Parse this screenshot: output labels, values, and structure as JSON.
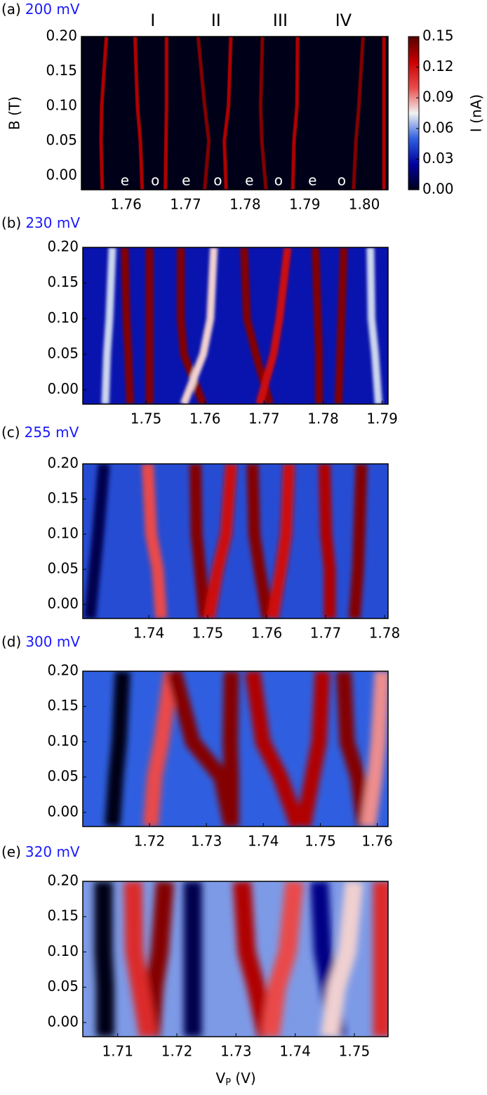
{
  "chart_data": [
    {
      "type": "heatmap",
      "label": "(a)",
      "subtitle": "200 mV",
      "ylabel": "B (T)",
      "xlim": [
        1.7525,
        1.804
      ],
      "xticks": [
        1.76,
        1.77,
        1.78,
        1.79,
        {
          "value": 1.8,
          "label": "1.80"
        }
      ],
      "ylim": [
        -0.02,
        0.2
      ],
      "yticks": [
        {
          "value": 0,
          "label": "0.00"
        },
        0.05,
        {
          "value": 0.1,
          "label": "0.10"
        },
        0.15,
        {
          "value": 0.2,
          "label": "0.20"
        }
      ],
      "background": 0.0,
      "y": [
        -0.02,
        0.05,
        0.1,
        0.2
      ],
      "series": [
        {
          "level": 0.13,
          "values": [
            1.756,
            1.7558,
            1.7559,
            1.7567
          ]
        },
        {
          "level": 0.13,
          "values": [
            1.7627,
            1.7624,
            1.7619,
            1.7615
          ]
        },
        {
          "level": 0.13,
          "values": [
            1.7666,
            1.7667,
            1.7668,
            1.7668
          ]
        },
        {
          "level": 0.14,
          "values": [
            1.7732,
            1.7739,
            1.7732,
            1.7721
          ]
        },
        {
          "level": 0.13,
          "values": [
            1.7768,
            1.7765,
            1.7772,
            1.7776
          ]
        },
        {
          "level": 0.14,
          "values": [
            1.7835,
            1.7828,
            1.7826,
            1.7829
          ]
        },
        {
          "level": 0.13,
          "values": [
            1.788,
            1.7882,
            1.7887,
            1.7888
          ]
        },
        {
          "level": 0.14,
          "values": [
            1.7982,
            1.7986,
            1.7991,
            1.7998
          ]
        },
        {
          "level": 0.13,
          "values": [
            1.8033,
            1.8033,
            1.8033,
            1.8033
          ]
        }
      ],
      "annotations": [
        {
          "text": "I",
          "x": 1.7645
        },
        {
          "text": "II",
          "x": 1.7751
        },
        {
          "text": "III",
          "x": 1.7859
        },
        {
          "text": "IV",
          "x": 1.7965
        }
      ],
      "parity_labels": [
        {
          "text": "e",
          "x": 1.7598
        },
        {
          "text": "o",
          "x": 1.7649
        },
        {
          "text": "e",
          "x": 1.7701
        },
        {
          "text": "o",
          "x": 1.7754
        },
        {
          "text": "e",
          "x": 1.7807
        },
        {
          "text": "o",
          "x": 1.7856
        },
        {
          "text": "e",
          "x": 1.7913
        },
        {
          "text": "o",
          "x": 1.7962
        }
      ],
      "colorbar": {
        "label": "I (nA)",
        "clim": [
          0,
          0.15
        ],
        "ticks": [
          {
            "value": 0,
            "label": "0.00"
          },
          {
            "value": 0.03,
            "label": "0.03"
          },
          {
            "value": 0.06,
            "label": "0.06"
          },
          {
            "value": 0.09,
            "label": "0.09"
          },
          {
            "value": 0.12,
            "label": "0.12"
          },
          0.15
        ],
        "colors": [
          "#000018",
          "#0000a0",
          "#2f5fe0",
          "#f2f2f2",
          "#ea4a4a",
          "#c80000",
          "#560000"
        ]
      }
    },
    {
      "type": "heatmap",
      "label": "(b)",
      "subtitle": "230 mV",
      "xlim": [
        1.7393,
        1.791
      ],
      "xticks": [
        1.75,
        1.76,
        1.77,
        1.78,
        1.79
      ],
      "ylim": [
        -0.02,
        0.2
      ],
      "yticks": [
        {
          "value": 0,
          "label": "0.00"
        },
        0.05,
        {
          "value": 0.1,
          "label": "0.10"
        },
        0.15,
        {
          "value": 0.2,
          "label": "0.20"
        }
      ],
      "background": 0.03,
      "y": [
        -0.02,
        0.05,
        0.1,
        0.2
      ],
      "series": [
        {
          "level": 0.07,
          "values": [
            1.7431,
            1.7434,
            1.7438,
            1.7443
          ]
        },
        {
          "level": 0.14,
          "values": [
            1.7473,
            1.747,
            1.7467,
            1.7464
          ]
        },
        {
          "level": 0.14,
          "values": [
            1.7506,
            1.7506,
            1.7506,
            1.7506
          ]
        },
        {
          "level": 0.14,
          "values": [
            1.7597,
            1.7564,
            1.7559,
            1.7559
          ]
        },
        {
          "level": 0.08,
          "values": [
            1.7564,
            1.7597,
            1.7609,
            1.7615
          ]
        },
        {
          "level": 0.14,
          "values": [
            1.771,
            1.7686,
            1.7671,
            1.7666
          ]
        },
        {
          "level": 0.12,
          "values": [
            1.7692,
            1.7716,
            1.7726,
            1.774
          ]
        },
        {
          "level": 0.14,
          "values": [
            1.7793,
            1.7793,
            1.7791,
            1.7787
          ]
        },
        {
          "level": 0.14,
          "values": [
            1.7826,
            1.7829,
            1.7831,
            1.7835
          ]
        },
        {
          "level": 0.07,
          "values": [
            1.7894,
            1.7888,
            1.7882,
            1.788
          ]
        }
      ]
    },
    {
      "type": "heatmap",
      "label": "(c)",
      "subtitle": "255 mV",
      "xlim": [
        1.7288,
        1.7806
      ],
      "xticks": [
        1.74,
        1.75,
        1.76,
        1.77,
        1.78
      ],
      "ylim": [
        -0.02,
        0.2
      ],
      "yticks": [
        {
          "value": 0,
          "label": "0.00"
        },
        0.05,
        {
          "value": 0.1,
          "label": "0.10"
        },
        0.15,
        {
          "value": 0.2,
          "label": "0.20"
        }
      ],
      "background": 0.045,
      "y": [
        -0.02,
        0.05,
        0.1,
        0.2
      ],
      "series": [
        {
          "level": 0.01,
          "values": [
            1.73,
            1.7308,
            1.7314,
            1.7324
          ]
        },
        {
          "level": 0.1,
          "values": [
            1.7421,
            1.7415,
            1.7404,
            1.7398
          ]
        },
        {
          "level": 0.14,
          "values": [
            1.7495,
            1.7487,
            1.7481,
            1.7479
          ]
        },
        {
          "level": 0.12,
          "values": [
            1.7502,
            1.7517,
            1.7531,
            1.754
          ]
        },
        {
          "level": 0.14,
          "values": [
            1.7602,
            1.7588,
            1.7579,
            1.7576
          ]
        },
        {
          "level": 0.12,
          "values": [
            1.761,
            1.7624,
            1.7633,
            1.7638
          ]
        },
        {
          "level": 0.13,
          "values": [
            1.7707,
            1.7707,
            1.7701,
            1.7698
          ]
        },
        {
          "level": 0.14,
          "values": [
            1.7749,
            1.7755,
            1.7757,
            1.7761
          ]
        }
      ]
    },
    {
      "type": "heatmap",
      "label": "(d)",
      "subtitle": "300 mV",
      "xlim": [
        1.7083,
        1.7619
      ],
      "xticks": [
        1.72,
        1.73,
        1.74,
        1.75,
        1.76
      ],
      "ylim": [
        -0.02,
        0.2
      ],
      "yticks": [
        {
          "value": 0,
          "label": "0.00"
        },
        0.05,
        {
          "value": 0.1,
          "label": "0.10"
        },
        0.15,
        {
          "value": 0.2,
          "label": "0.20"
        }
      ],
      "background": 0.05,
      "y": [
        -0.02,
        0.05,
        0.1,
        0.2
      ],
      "series": [
        {
          "level": 0.0,
          "values": [
            1.7135,
            1.7141,
            1.7147,
            1.7153
          ]
        },
        {
          "level": 0.1,
          "values": [
            1.7202,
            1.7209,
            1.7221,
            1.7239
          ]
        },
        {
          "level": 0.14,
          "values": [
            1.7344,
            1.7326,
            1.7276,
            1.7243
          ]
        },
        {
          "level": 0.14,
          "values": [
            1.7344,
            1.7344,
            1.7342,
            1.7344
          ]
        },
        {
          "level": 0.13,
          "values": [
            1.7461,
            1.743,
            1.7399,
            1.7381
          ]
        },
        {
          "level": 0.13,
          "values": [
            1.747,
            1.7486,
            1.7498,
            1.7504
          ]
        },
        {
          "level": 0.14,
          "values": [
            1.7578,
            1.7566,
            1.7547,
            1.7541
          ]
        },
        {
          "level": 0.09,
          "values": [
            1.7584,
            1.7596,
            1.7602,
            1.7609
          ]
        }
      ]
    },
    {
      "type": "heatmap",
      "label": "(e)",
      "subtitle": "320 mV",
      "xlabel": [
        "V",
        "P",
        " (V)"
      ],
      "xlim": [
        1.7041,
        1.7557
      ],
      "xticks": [
        1.71,
        1.72,
        1.73,
        1.74,
        1.75
      ],
      "ylim": [
        -0.02,
        0.2
      ],
      "yticks": [
        {
          "value": 0,
          "label": "0.00"
        },
        0.05,
        {
          "value": 0.1,
          "label": "0.10"
        },
        0.15,
        {
          "value": 0.2,
          "label": "0.20"
        }
      ],
      "background": 0.06,
      "y": [
        -0.02,
        0.05,
        0.1,
        0.2
      ],
      "series": [
        {
          "level": 0.0,
          "values": [
            1.7079,
            1.7079,
            1.7076,
            1.7076
          ]
        },
        {
          "level": 0.14,
          "values": [
            1.7156,
            1.7162,
            1.7171,
            1.718
          ]
        },
        {
          "level": 0.11,
          "values": [
            1.7152,
            1.7138,
            1.7128,
            1.7126
          ]
        },
        {
          "level": 0.01,
          "values": [
            1.7227,
            1.7227,
            1.7227,
            1.7227
          ]
        },
        {
          "level": 0.13,
          "values": [
            1.7352,
            1.7334,
            1.7318,
            1.731
          ]
        },
        {
          "level": 0.1,
          "values": [
            1.7358,
            1.7369,
            1.7387,
            1.7399
          ]
        },
        {
          "level": 0.02,
          "values": [
            1.747,
            1.7458,
            1.7447,
            1.7441
          ]
        },
        {
          "level": 0.08,
          "values": [
            1.7458,
            1.747,
            1.7488,
            1.75
          ]
        },
        {
          "level": 0.11,
          "values": [
            1.7547,
            1.7547,
            1.7547,
            1.7547
          ]
        }
      ]
    }
  ]
}
